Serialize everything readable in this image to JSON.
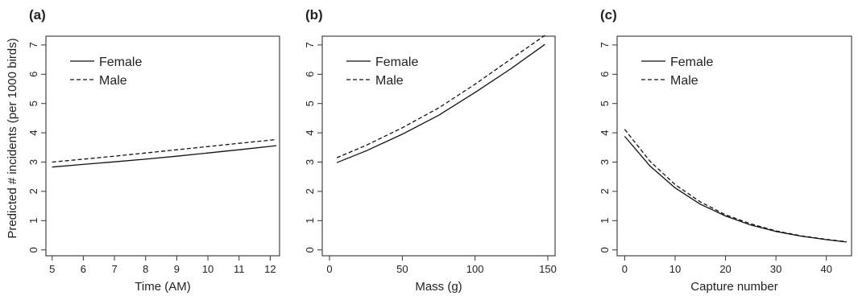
{
  "figure": {
    "ylabel": "Predicted # incidents (per 1000 birds)"
  },
  "chart_data": [
    {
      "type": "line",
      "panel": "(a)",
      "xlabel": "Time (AM)",
      "ylabel": "Predicted # incidents (per 1000 birds)",
      "xlim": [
        4.8,
        12.3
      ],
      "ylim": [
        -0.2,
        7.3
      ],
      "xticks": [
        5,
        6,
        7,
        8,
        9,
        10,
        11,
        12
      ],
      "yticks": [
        0,
        1,
        2,
        3,
        4,
        5,
        6,
        7
      ],
      "legend_position": "top-left",
      "series": [
        {
          "name": "Female",
          "style": "solid",
          "x": [
            5,
            6,
            7,
            8,
            9,
            10,
            11,
            12.2
          ],
          "values": [
            2.83,
            2.92,
            3.01,
            3.1,
            3.2,
            3.31,
            3.42,
            3.56
          ]
        },
        {
          "name": "Male",
          "style": "dashed",
          "x": [
            5,
            6,
            7,
            8,
            9,
            10,
            11,
            12.2
          ],
          "values": [
            3.0,
            3.1,
            3.2,
            3.31,
            3.42,
            3.53,
            3.64,
            3.77
          ]
        }
      ]
    },
    {
      "type": "line",
      "panel": "(b)",
      "xlabel": "Mass (g)",
      "ylabel": "",
      "xlim": [
        -5,
        155
      ],
      "ylim": [
        -0.2,
        7.3
      ],
      "xticks": [
        0,
        50,
        100,
        150
      ],
      "yticks": [
        0,
        1,
        2,
        3,
        4,
        5,
        6,
        7
      ],
      "legend_position": "top-left",
      "series": [
        {
          "name": "Female",
          "style": "solid",
          "x": [
            5,
            25,
            50,
            75,
            100,
            125,
            148
          ],
          "values": [
            2.98,
            3.38,
            3.95,
            4.6,
            5.38,
            6.2,
            7.02
          ]
        },
        {
          "name": "Male",
          "style": "dashed",
          "x": [
            5,
            25,
            50,
            75,
            100,
            125,
            148
          ],
          "values": [
            3.15,
            3.57,
            4.17,
            4.85,
            5.66,
            6.53,
            7.33
          ]
        }
      ]
    },
    {
      "type": "line",
      "panel": "(c)",
      "xlabel": "Capture number",
      "ylabel": "",
      "xlim": [
        -1.5,
        45
      ],
      "ylim": [
        -0.2,
        7.3
      ],
      "xticks": [
        0,
        10,
        20,
        30,
        40
      ],
      "yticks": [
        0,
        1,
        2,
        3,
        4,
        5,
        6,
        7
      ],
      "legend_position": "top-left",
      "series": [
        {
          "name": "Female",
          "style": "solid",
          "x": [
            0,
            5,
            10,
            15,
            20,
            25,
            30,
            35,
            40,
            44
          ],
          "values": [
            3.88,
            2.87,
            2.12,
            1.56,
            1.16,
            0.85,
            0.63,
            0.47,
            0.35,
            0.27
          ]
        },
        {
          "name": "Male",
          "style": "dashed",
          "x": [
            0,
            5,
            10,
            15,
            20,
            25,
            30,
            35,
            40,
            44
          ],
          "values": [
            4.12,
            3.03,
            2.23,
            1.64,
            1.2,
            0.89,
            0.65,
            0.48,
            0.36,
            0.28
          ]
        }
      ]
    }
  ]
}
